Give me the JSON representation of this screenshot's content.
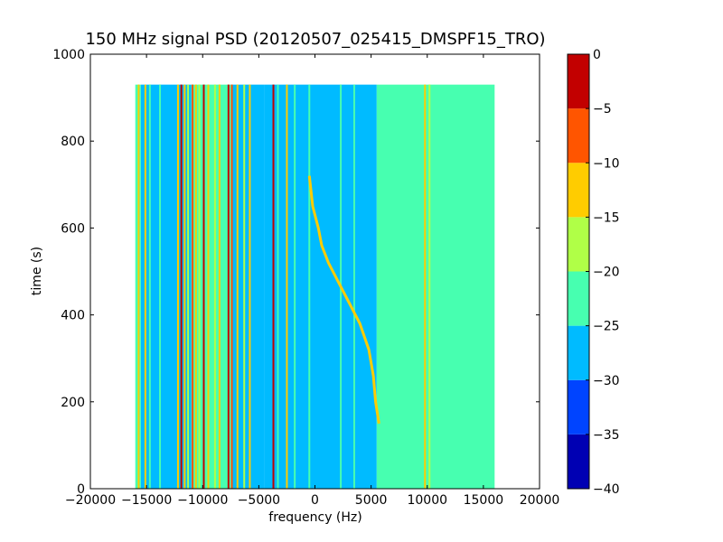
{
  "chart_data": {
    "type": "heatmap",
    "title": "150 MHz signal PSD (20120507_025415_DMSPF15_TRO)",
    "xlabel": "frequency (Hz)",
    "ylabel": "time (s)",
    "xlim": [
      -20000,
      20000
    ],
    "ylim": [
      0,
      1000
    ],
    "x_extent": [
      -16000,
      16000
    ],
    "y_extent": [
      0,
      930
    ],
    "xticks": [
      -20000,
      -15000,
      -10000,
      -5000,
      0,
      5000,
      10000,
      15000,
      20000
    ],
    "xtick_labels": [
      "−20000",
      "−15000",
      "−10000",
      "−5000",
      "0",
      "5000",
      "10000",
      "15000",
      "20000"
    ],
    "yticks": [
      0,
      200,
      400,
      600,
      800,
      1000
    ],
    "ytick_labels": [
      "0",
      "200",
      "400",
      "600",
      "800",
      "1000"
    ],
    "colorbar": {
      "levels": [
        -40,
        -35,
        -30,
        -25,
        -20,
        -15,
        -10,
        -5,
        0
      ],
      "tick_labels": [
        "−40",
        "−35",
        "−30",
        "−25",
        "−20",
        "−15",
        "−10",
        "−5",
        "0"
      ],
      "colors": [
        "#0000b3",
        "#0044ff",
        "#00bbff",
        "#47ffb0",
        "#b0ff47",
        "#ffcc00",
        "#ff5500",
        "#c20000"
      ]
    },
    "background_regions": [
      {
        "x0": -16000,
        "x1": -15500,
        "level": -22
      },
      {
        "x0": -15500,
        "x1": -11000,
        "level": -27
      },
      {
        "x0": -11000,
        "x1": -7500,
        "level": -24
      },
      {
        "x0": -7500,
        "x1": -4500,
        "level": -27
      },
      {
        "x0": -4500,
        "x1": 5500,
        "level": -28
      },
      {
        "x0": 5500,
        "x1": 16000,
        "level": -23
      }
    ],
    "lines": [
      {
        "x": -15700,
        "level": -14
      },
      {
        "x": -15100,
        "level": -12
      },
      {
        "x": -14700,
        "level": -22
      },
      {
        "x": -13800,
        "level": -23
      },
      {
        "x": -12200,
        "level": -12
      },
      {
        "x": -11900,
        "level": -4
      },
      {
        "x": -11600,
        "level": -14
      },
      {
        "x": -11300,
        "level": -20
      },
      {
        "x": -10900,
        "level": -8
      },
      {
        "x": -10600,
        "level": -14
      },
      {
        "x": -10300,
        "level": -20
      },
      {
        "x": -9900,
        "level": -2
      },
      {
        "x": -9500,
        "level": -14
      },
      {
        "x": -8900,
        "level": -18
      },
      {
        "x": -8500,
        "level": -14
      },
      {
        "x": -7700,
        "level": -4
      },
      {
        "x": -7400,
        "level": -8
      },
      {
        "x": -6900,
        "level": -14
      },
      {
        "x": -6300,
        "level": -18
      },
      {
        "x": -5800,
        "level": -14
      },
      {
        "x": -3700,
        "level": -4
      },
      {
        "x": -3300,
        "level": -22
      },
      {
        "x": -2500,
        "level": -14
      },
      {
        "x": -1800,
        "level": -22
      },
      {
        "x": -500,
        "level": -22
      },
      {
        "x": 2300,
        "level": -22
      },
      {
        "x": 3500,
        "level": -22
      },
      {
        "x": 9800,
        "level": -14
      },
      {
        "x": 10200,
        "level": -18
      }
    ],
    "doppler_trace": {
      "level": -14,
      "points": [
        {
          "x": -500,
          "y": 720
        },
        {
          "x": -200,
          "y": 650
        },
        {
          "x": 300,
          "y": 600
        },
        {
          "x": 600,
          "y": 560
        },
        {
          "x": 1200,
          "y": 520
        },
        {
          "x": 2200,
          "y": 470
        },
        {
          "x": 3200,
          "y": 420
        },
        {
          "x": 4000,
          "y": 380
        },
        {
          "x": 4800,
          "y": 320
        },
        {
          "x": 5200,
          "y": 260
        },
        {
          "x": 5400,
          "y": 200
        },
        {
          "x": 5700,
          "y": 150
        }
      ]
    }
  }
}
